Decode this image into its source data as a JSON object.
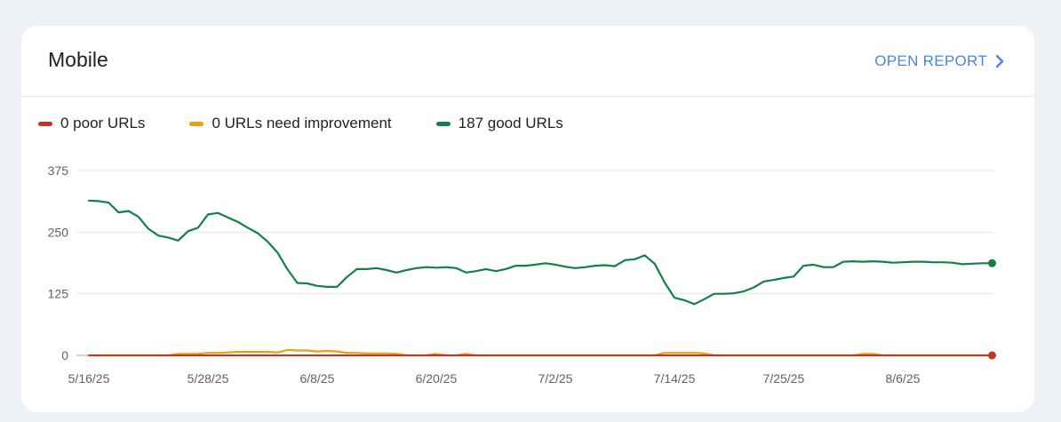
{
  "card": {
    "title": "Mobile",
    "open_report_label": "OPEN REPORT"
  },
  "legend": [
    {
      "label": "0 poor URLs",
      "color": "#c5331e"
    },
    {
      "label": "0 URLs need improvement",
      "color": "#f19c0f"
    },
    {
      "label": "187 good URLs",
      "color": "#138146"
    }
  ],
  "chart_data": {
    "type": "line",
    "ylim": [
      0,
      375
    ],
    "yticks": [
      0,
      125,
      250,
      375
    ],
    "xlim": [
      "2025-05-16",
      "2025-08-17"
    ],
    "xticks": [
      {
        "date": "2025-05-16",
        "label": "5/16/25"
      },
      {
        "date": "2025-05-28",
        "label": "5/28/25"
      },
      {
        "date": "2025-06-08",
        "label": "6/8/25"
      },
      {
        "date": "2025-06-20",
        "label": "6/20/25"
      },
      {
        "date": "2025-07-02",
        "label": "7/2/25"
      },
      {
        "date": "2025-07-14",
        "label": "7/14/25"
      },
      {
        "date": "2025-07-25",
        "label": "7/25/25"
      },
      {
        "date": "2025-08-06",
        "label": "8/6/25"
      }
    ],
    "grid": true,
    "x": [
      "2025-05-16",
      "2025-05-17",
      "2025-05-18",
      "2025-05-19",
      "2025-05-20",
      "2025-05-21",
      "2025-05-22",
      "2025-05-23",
      "2025-05-24",
      "2025-05-25",
      "2025-05-26",
      "2025-05-27",
      "2025-05-28",
      "2025-05-29",
      "2025-05-30",
      "2025-05-31",
      "2025-06-01",
      "2025-06-02",
      "2025-06-03",
      "2025-06-04",
      "2025-06-05",
      "2025-06-06",
      "2025-06-07",
      "2025-06-08",
      "2025-06-09",
      "2025-06-10",
      "2025-06-11",
      "2025-06-12",
      "2025-06-13",
      "2025-06-14",
      "2025-06-15",
      "2025-06-16",
      "2025-06-17",
      "2025-06-18",
      "2025-06-19",
      "2025-06-20",
      "2025-06-21",
      "2025-06-22",
      "2025-06-23",
      "2025-06-24",
      "2025-06-25",
      "2025-06-26",
      "2025-06-27",
      "2025-06-28",
      "2025-06-29",
      "2025-06-30",
      "2025-07-01",
      "2025-07-02",
      "2025-07-03",
      "2025-07-04",
      "2025-07-05",
      "2025-07-06",
      "2025-07-07",
      "2025-07-08",
      "2025-07-09",
      "2025-07-10",
      "2025-07-11",
      "2025-07-12",
      "2025-07-13",
      "2025-07-14",
      "2025-07-15",
      "2025-07-16",
      "2025-07-17",
      "2025-07-18",
      "2025-07-19",
      "2025-07-20",
      "2025-07-21",
      "2025-07-22",
      "2025-07-23",
      "2025-07-24",
      "2025-07-25",
      "2025-07-26",
      "2025-07-27",
      "2025-07-28",
      "2025-07-29",
      "2025-07-30",
      "2025-07-31",
      "2025-08-01",
      "2025-08-02",
      "2025-08-03",
      "2025-08-04",
      "2025-08-05",
      "2025-08-06",
      "2025-08-07",
      "2025-08-08",
      "2025-08-09",
      "2025-08-10",
      "2025-08-11",
      "2025-08-12",
      "2025-08-13",
      "2025-08-14",
      "2025-08-15"
    ],
    "series": [
      {
        "name": "0 poor URLs",
        "color": "#c5331e",
        "values": [
          0,
          0,
          0,
          0,
          0,
          0,
          0,
          0,
          0,
          0,
          0,
          0,
          0,
          0,
          0,
          0,
          0,
          0,
          0,
          0,
          0,
          0,
          0,
          0,
          0,
          0,
          0,
          0,
          0,
          0,
          0,
          0,
          0,
          0,
          0,
          0,
          0,
          0,
          0,
          0,
          0,
          0,
          0,
          0,
          0,
          0,
          0,
          0,
          0,
          0,
          0,
          0,
          0,
          0,
          0,
          0,
          0,
          0,
          0,
          0,
          0,
          0,
          0,
          0,
          0,
          0,
          0,
          0,
          0,
          0,
          0,
          0,
          0,
          0,
          0,
          0,
          0,
          0,
          0,
          0,
          0,
          0,
          0,
          0,
          0,
          0,
          0,
          0,
          0,
          0,
          0,
          0
        ]
      },
      {
        "name": "0 URLs need improvement",
        "color": "#f19c0f",
        "values": [
          0,
          0,
          0,
          0,
          0,
          0,
          0,
          0,
          0,
          3,
          3,
          3,
          5,
          5,
          6,
          7,
          7,
          7,
          7,
          6,
          11,
          10,
          10,
          8,
          9,
          8,
          5,
          5,
          4,
          4,
          4,
          3,
          0,
          0,
          0,
          3,
          0,
          0,
          3,
          0,
          0,
          0,
          0,
          0,
          0,
          0,
          0,
          0,
          0,
          0,
          0,
          0,
          0,
          0,
          0,
          0,
          0,
          0,
          5,
          5,
          5,
          5,
          4,
          0,
          0,
          0,
          0,
          0,
          0,
          0,
          0,
          0,
          0,
          0,
          0,
          0,
          0,
          0,
          3,
          3,
          0,
          0,
          0,
          0,
          0,
          0,
          0,
          0,
          0,
          0,
          0,
          0
        ]
      },
      {
        "name": "187 good URLs",
        "color": "#138146",
        "values": [
          314,
          313,
          310,
          290,
          293,
          281,
          257,
          243,
          239,
          233,
          252,
          259,
          286,
          289,
          280,
          271,
          259,
          248,
          231,
          209,
          175,
          147,
          146,
          141,
          139,
          139,
          159,
          175,
          175,
          177,
          173,
          168,
          173,
          177,
          179,
          178,
          179,
          177,
          168,
          171,
          175,
          171,
          175,
          182,
          182,
          184,
          187,
          184,
          180,
          177,
          179,
          182,
          183,
          181,
          193,
          195,
          203,
          186,
          148,
          117,
          112,
          104,
          114,
          125,
          125,
          126,
          130,
          138,
          150,
          153,
          157,
          160,
          182,
          184,
          179,
          179,
          190,
          191,
          190,
          191,
          190,
          188,
          189,
          190,
          190,
          189,
          189,
          188,
          185,
          186,
          187,
          187
        ]
      }
    ]
  }
}
